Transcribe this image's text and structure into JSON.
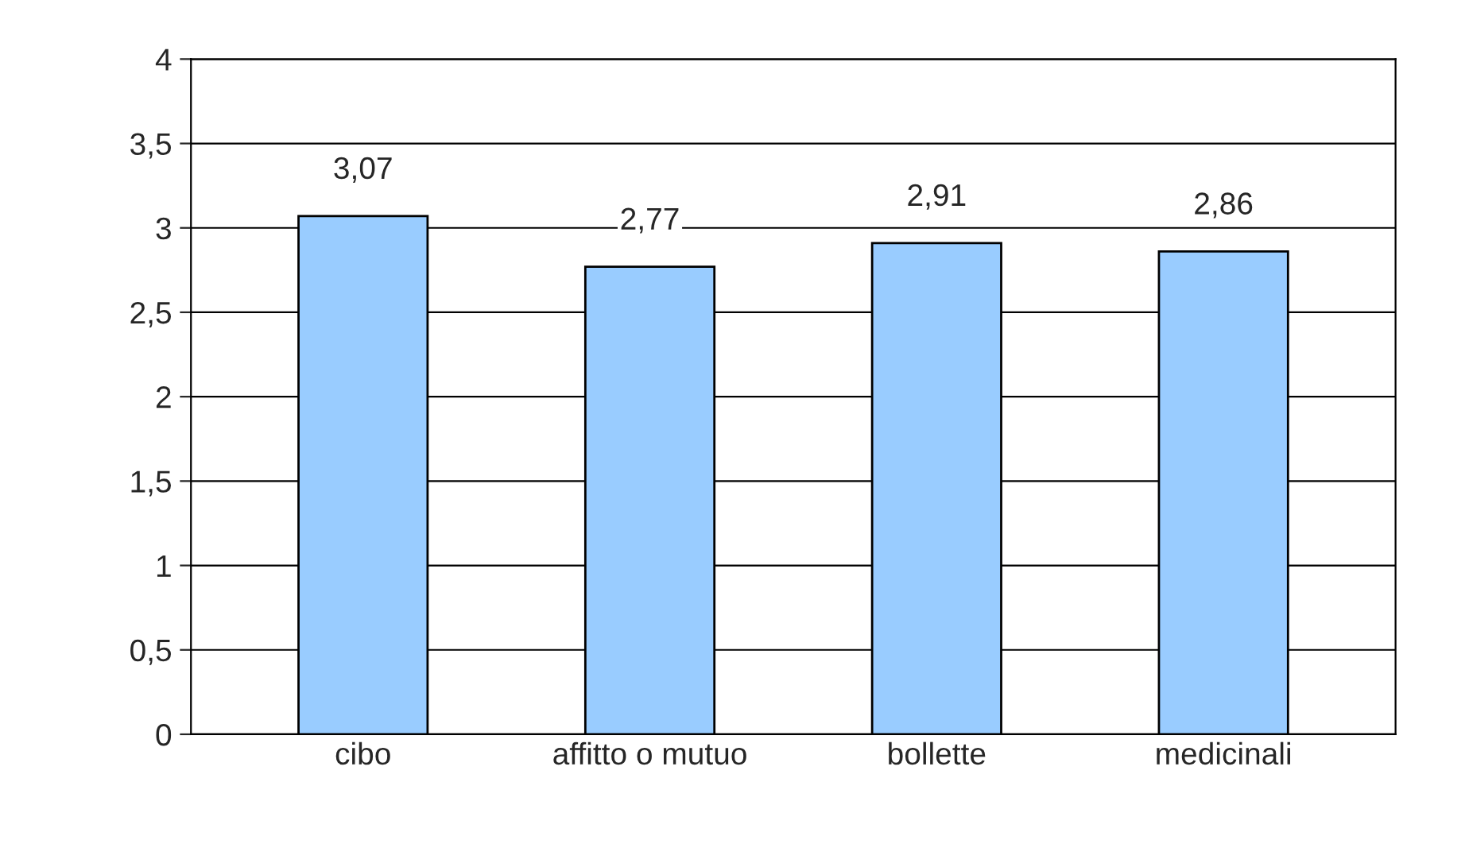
{
  "chart_data": {
    "type": "bar",
    "categories": [
      "cibo",
      "affitto o mutuo",
      "bollette",
      "medicinali"
    ],
    "values": [
      3.07,
      2.77,
      2.91,
      2.86
    ],
    "value_labels": [
      "3,07",
      "2,77",
      "2,91",
      "2,86"
    ],
    "color": "#99ccff",
    "ylim": [
      0,
      4
    ],
    "yticks": [
      0,
      {
        "value": 0.5,
        "label": "0,5"
      },
      1,
      {
        "value": 1.5,
        "label": "1,5"
      },
      2,
      {
        "value": 2.5,
        "label": "2,5"
      },
      3,
      {
        "value": 3.5,
        "label": "3,5"
      },
      4
    ],
    "grid": "y",
    "legend": false
  }
}
